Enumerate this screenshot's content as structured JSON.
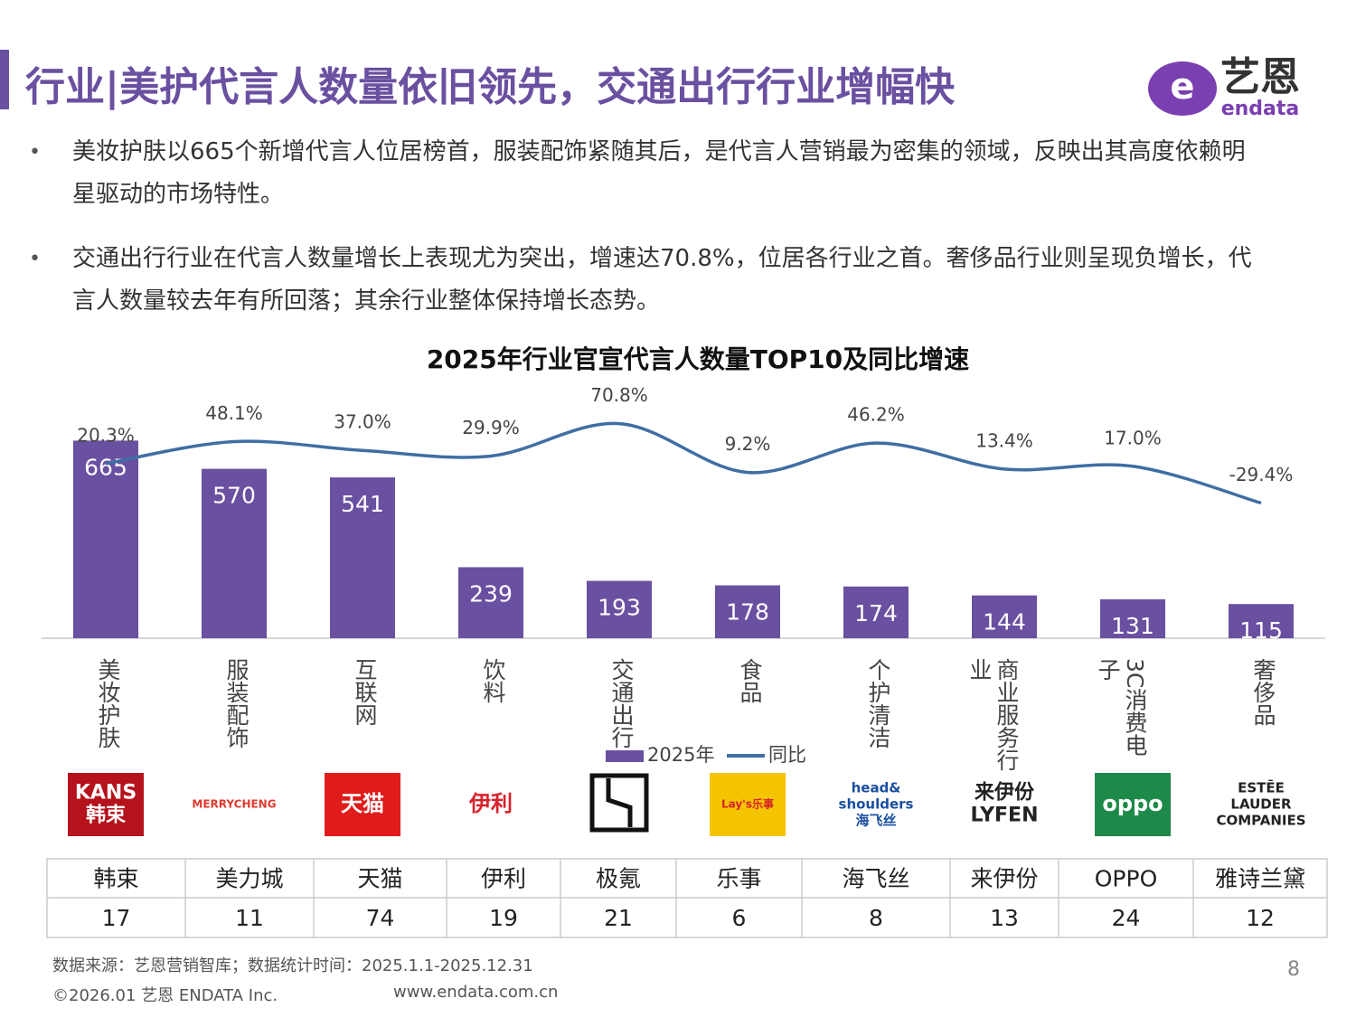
{
  "header": {
    "title": "行业|美护代言人数量依旧领先，交通出行行业增幅快"
  },
  "brand_logo": {
    "name": "艺恩",
    "sub": "endata"
  },
  "bullets": [
    "美妆护肤以665个新增代言人位居榜首，服装配饰紧随其后，是代言人营销最为密集的领域，反映出其高度依赖明星驱动的市场特性。",
    "交通出行行业在代言人数量增长上表现尤为突出，增速达70.8%，位居各行业之首。奢侈品行业则呈现负增长，代言人数量较去年有所回落；其余行业整体保持增长态势。"
  ],
  "chart_data": {
    "type": "bar",
    "title": "2025年行业官宣代言人数量TOP10及同比增速",
    "categories": [
      "美妆护肤",
      "服装配饰",
      "互联网",
      "饮料",
      "交通出行",
      "食品",
      "个护清洁",
      "商业服务行业",
      "3C消费电子",
      "奢侈品"
    ],
    "series": [
      {
        "name": "2025年",
        "color": "#6a50a0",
        "values": [
          665,
          570,
          541,
          239,
          193,
          178,
          174,
          144,
          131,
          115
        ]
      },
      {
        "name": "同比",
        "color": "#3f6ea3",
        "axis": "y2",
        "type": "line",
        "values": [
          20.3,
          48.1,
          37.0,
          29.9,
          70.8,
          9.2,
          46.2,
          13.4,
          17.0,
          -29.4
        ],
        "value_labels": [
          "20.3%",
          "48.1%",
          "37.0%",
          "29.9%",
          "70.8%",
          "9.2%",
          "46.2%",
          "13.4%",
          "17.0%",
          "-29.4%"
        ]
      }
    ],
    "ylim": [
      0,
      800
    ],
    "y2lim": [
      -200,
      100
    ],
    "grid": false,
    "legend": "bottom"
  },
  "logos": [
    {
      "lines": [
        "KANS",
        "韩束"
      ],
      "background": "#b5121b",
      "color": "#ffffff"
    },
    {
      "lines": [
        "MERRYCHENG"
      ],
      "background": "#ffffff",
      "color": "#e03a2e"
    },
    {
      "lines": [
        "天猫"
      ],
      "background": "#e01b1b",
      "color": "#ffffff"
    },
    {
      "lines": [
        "伊利"
      ],
      "background": "#ffffff",
      "color": "#d7222a"
    },
    null,
    {
      "lines": [
        "Lay's乐事"
      ],
      "background": "#f5c400",
      "color": "#d7222a"
    },
    {
      "lines": [
        "head&",
        "shoulders",
        "海飞丝"
      ],
      "background": "#ffffff",
      "color": "#1a4fa0"
    },
    {
      "lines": [
        "来伊份",
        "LYFEN"
      ],
      "background": "#ffffff",
      "color": "#222222"
    },
    {
      "lines": [
        "oppo"
      ],
      "background": "#1e8a4a",
      "color": "#ffffff"
    },
    {
      "lines": [
        "ESTĒE",
        "LAUDER",
        "COMPANIES"
      ],
      "background": "#ffffff",
      "color": "#222222"
    }
  ],
  "table": {
    "brands": [
      "韩束",
      "美力城",
      "天猫",
      "伊利",
      "极氪",
      "乐事",
      "海飞丝",
      "来伊份",
      "OPPO",
      "雅诗兰黛"
    ],
    "counts": [
      17,
      11,
      74,
      19,
      21,
      6,
      8,
      13,
      24,
      12
    ]
  },
  "footer": {
    "source": "数据来源：艺恩营销智库；数据统计时间：2025.1.1-2025.12.31",
    "copyright": "©2026.01 艺恩 ENDATA Inc.",
    "website": "www.endata.com.cn",
    "page": "8"
  }
}
